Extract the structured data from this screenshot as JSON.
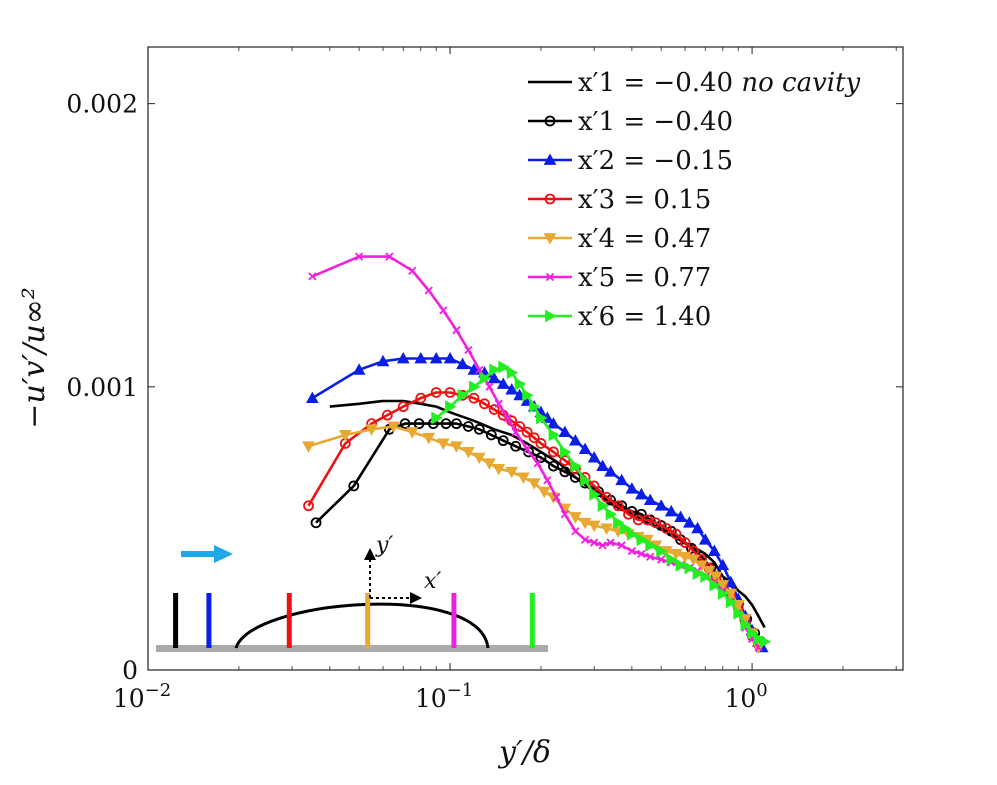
{
  "chart_data": {
    "type": "line",
    "xscale": "log",
    "xlim": [
      0.01,
      3.16
    ],
    "ylim": [
      0,
      0.0022
    ],
    "xlabel": "y′/δ",
    "ylabel": "−u′v′/u∞²",
    "x_ticks": [
      {
        "value": 0.01,
        "label": "10",
        "exp": "−2"
      },
      {
        "value": 0.1,
        "label": "10",
        "exp": "−1"
      },
      {
        "value": 1,
        "label": "10",
        "exp": "0"
      }
    ],
    "y_ticks": [
      {
        "value": 0,
        "label": "0"
      },
      {
        "value": 0.001,
        "label": "0.001"
      },
      {
        "value": 0.002,
        "label": "0.002"
      }
    ],
    "legend_position": "top-right",
    "series": [
      {
        "name": "x′1 = −0.40",
        "name_suffix": "no cavity",
        "color": "#000000",
        "marker": "none",
        "x": [
          0.04,
          0.05,
          0.06,
          0.07,
          0.08,
          0.09,
          0.1,
          0.12,
          0.14,
          0.16,
          0.18,
          0.2,
          0.23,
          0.26,
          0.3,
          0.35,
          0.4,
          0.45,
          0.5,
          0.55,
          0.6,
          0.65,
          0.7,
          0.75,
          0.8,
          0.85,
          0.9,
          0.95,
          1.0,
          1.05,
          1.1
        ],
        "y": [
          0.00093,
          0.00094,
          0.00095,
          0.00095,
          0.00094,
          0.00093,
          0.00091,
          0.00088,
          0.00085,
          0.00083,
          0.0008,
          0.00077,
          0.00073,
          0.00068,
          0.00063,
          0.00058,
          0.00055,
          0.00052,
          0.0005,
          0.00047,
          0.00045,
          0.00043,
          0.00041,
          0.00038,
          0.00033,
          0.00031,
          0.00028,
          0.00026,
          0.00023,
          0.00019,
          0.00015
        ]
      },
      {
        "name": "x′1 = −0.40",
        "color": "#000000",
        "marker": "circle",
        "x": [
          0.036,
          0.048,
          0.063,
          0.071,
          0.079,
          0.088,
          0.097,
          0.105,
          0.115,
          0.125,
          0.137,
          0.15,
          0.165,
          0.182,
          0.2,
          0.22,
          0.24,
          0.26,
          0.28,
          0.31,
          0.34,
          0.37,
          0.4,
          0.43,
          0.46,
          0.5,
          0.54,
          0.58,
          0.63,
          0.68,
          0.73,
          0.78,
          0.84,
          0.9,
          0.96,
          1.02,
          1.07
        ],
        "y": [
          0.00052,
          0.00065,
          0.00085,
          0.00087,
          0.00087,
          0.00087,
          0.00087,
          0.00087,
          0.00086,
          0.00085,
          0.00083,
          0.00081,
          0.00079,
          0.00077,
          0.00075,
          0.00072,
          0.0007,
          0.00068,
          0.00066,
          0.00063,
          0.0006,
          0.00058,
          0.00056,
          0.00055,
          0.00053,
          0.00051,
          0.00049,
          0.00046,
          0.00043,
          0.0004,
          0.00036,
          0.00032,
          0.00028,
          0.00023,
          0.00018,
          0.00013,
          0.0001
        ]
      },
      {
        "name": "x′2 = −0.15",
        "color": "#0a1ee6",
        "marker": "triangle-up",
        "x": [
          0.035,
          0.05,
          0.06,
          0.07,
          0.08,
          0.09,
          0.1,
          0.11,
          0.12,
          0.13,
          0.14,
          0.15,
          0.16,
          0.17,
          0.18,
          0.19,
          0.2,
          0.21,
          0.22,
          0.24,
          0.26,
          0.28,
          0.3,
          0.32,
          0.34,
          0.37,
          0.4,
          0.43,
          0.46,
          0.5,
          0.54,
          0.58,
          0.62,
          0.66,
          0.7,
          0.75,
          0.8,
          0.85,
          0.9,
          0.95,
          1.0,
          1.05,
          1.08
        ],
        "y": [
          0.00096,
          0.00106,
          0.00109,
          0.0011,
          0.0011,
          0.0011,
          0.0011,
          0.00108,
          0.00106,
          0.00105,
          0.00103,
          0.00101,
          0.00099,
          0.00097,
          0.00095,
          0.00093,
          0.00091,
          0.00089,
          0.00087,
          0.00084,
          0.00081,
          0.00078,
          0.00075,
          0.00072,
          0.0007,
          0.00067,
          0.00064,
          0.00062,
          0.0006,
          0.00058,
          0.00056,
          0.00054,
          0.00052,
          0.0005,
          0.00046,
          0.00042,
          0.00037,
          0.00031,
          0.00025,
          0.00019,
          0.00014,
          0.0001,
          8e-05
        ]
      },
      {
        "name": "x′3 = 0.15",
        "color": "#ee1111",
        "marker": "circle",
        "x": [
          0.034,
          0.045,
          0.055,
          0.062,
          0.07,
          0.08,
          0.09,
          0.1,
          0.11,
          0.12,
          0.13,
          0.14,
          0.15,
          0.16,
          0.17,
          0.18,
          0.19,
          0.2,
          0.22,
          0.24,
          0.26,
          0.28,
          0.3,
          0.33,
          0.36,
          0.39,
          0.42,
          0.45,
          0.48,
          0.52,
          0.56,
          0.6,
          0.64,
          0.68,
          0.72,
          0.76,
          0.8,
          0.85,
          0.9,
          0.95,
          1.0,
          1.05
        ],
        "y": [
          0.00058,
          0.0008,
          0.00087,
          0.0009,
          0.00093,
          0.00096,
          0.00098,
          0.00098,
          0.00097,
          0.00096,
          0.00094,
          0.00092,
          0.0009,
          0.00088,
          0.00086,
          0.00084,
          0.00082,
          0.0008,
          0.00077,
          0.00074,
          0.00071,
          0.00068,
          0.00065,
          0.00061,
          0.00058,
          0.00055,
          0.00053,
          0.00053,
          0.00052,
          0.0005,
          0.00048,
          0.00045,
          0.00042,
          0.00039,
          0.00036,
          0.00033,
          0.0003,
          0.00026,
          0.00022,
          0.00017,
          0.00012,
          9e-05
        ]
      },
      {
        "name": "x′4 = 0.47",
        "color": "#e8a832",
        "marker": "triangle-down",
        "x": [
          0.034,
          0.045,
          0.055,
          0.065,
          0.075,
          0.085,
          0.095,
          0.105,
          0.115,
          0.125,
          0.135,
          0.145,
          0.16,
          0.175,
          0.19,
          0.205,
          0.22,
          0.24,
          0.26,
          0.28,
          0.3,
          0.33,
          0.36,
          0.39,
          0.42,
          0.45,
          0.48,
          0.52,
          0.56,
          0.6,
          0.64,
          0.68,
          0.72,
          0.76,
          0.8,
          0.85,
          0.9,
          0.95,
          1.0,
          1.05
        ],
        "y": [
          0.00079,
          0.00083,
          0.00085,
          0.00086,
          0.00084,
          0.00082,
          0.0008,
          0.00079,
          0.00077,
          0.00075,
          0.00073,
          0.00071,
          0.0007,
          0.00068,
          0.00066,
          0.00063,
          0.00061,
          0.00057,
          0.00054,
          0.00052,
          0.00051,
          0.0005,
          0.00049,
          0.00048,
          0.00047,
          0.00046,
          0.00044,
          0.00042,
          0.00041,
          0.0004,
          0.00039,
          0.00037,
          0.00035,
          0.00033,
          0.0003,
          0.00027,
          0.00023,
          0.00018,
          0.00013,
          8e-05
        ]
      },
      {
        "name": "x′5 = 0.77",
        "color": "#f020e0",
        "marker": "x",
        "x": [
          0.035,
          0.05,
          0.063,
          0.075,
          0.085,
          0.095,
          0.105,
          0.115,
          0.125,
          0.135,
          0.145,
          0.155,
          0.165,
          0.18,
          0.195,
          0.21,
          0.225,
          0.24,
          0.26,
          0.28,
          0.3,
          0.32,
          0.34,
          0.37,
          0.4,
          0.43,
          0.46,
          0.5,
          0.54,
          0.58,
          0.62,
          0.66,
          0.7,
          0.75,
          0.8,
          0.85,
          0.9,
          0.95,
          1.0,
          1.05
        ],
        "y": [
          0.00139,
          0.00146,
          0.00146,
          0.00141,
          0.00134,
          0.00127,
          0.0012,
          0.00113,
          0.00106,
          0.001,
          0.00094,
          0.00089,
          0.00084,
          0.00078,
          0.00073,
          0.00067,
          0.00061,
          0.00055,
          0.00049,
          0.00046,
          0.00045,
          0.00044,
          0.00045,
          0.00044,
          0.00042,
          0.00041,
          0.0004,
          0.00039,
          0.00038,
          0.00037,
          0.00036,
          0.00035,
          0.00033,
          0.00031,
          0.00028,
          0.00024,
          0.0002,
          0.00015,
          0.00011,
          8e-05
        ]
      },
      {
        "name": "x′6 = 1.40",
        "color": "#22ee22",
        "marker": "triangle-right",
        "x": [
          0.09,
          0.1,
          0.11,
          0.12,
          0.13,
          0.14,
          0.15,
          0.16,
          0.17,
          0.18,
          0.19,
          0.2,
          0.22,
          0.24,
          0.26,
          0.28,
          0.3,
          0.32,
          0.34,
          0.36,
          0.38,
          0.4,
          0.43,
          0.46,
          0.5,
          0.54,
          0.58,
          0.62,
          0.66,
          0.7,
          0.75,
          0.8,
          0.85,
          0.9,
          0.95,
          1.0,
          1.05,
          1.1
        ],
        "y": [
          0.00089,
          0.00093,
          0.00097,
          0.001,
          0.00103,
          0.00106,
          0.00107,
          0.00105,
          0.00101,
          0.00097,
          0.00093,
          0.00089,
          0.00083,
          0.00077,
          0.00072,
          0.00067,
          0.00062,
          0.00058,
          0.00055,
          0.00052,
          0.0005,
          0.00048,
          0.00046,
          0.00044,
          0.00042,
          0.00039,
          0.00037,
          0.00036,
          0.00034,
          0.00033,
          0.0003,
          0.00027,
          0.00024,
          0.0002,
          0.00016,
          0.00013,
          0.00011,
          0.0001
        ]
      }
    ],
    "inset": {
      "arrow_color": "#1ea8e8",
      "axis_label_x": "x′",
      "axis_label_y": "y′",
      "base_color": "#aaaaaa",
      "stations": [
        {
          "position": 0.05,
          "color": "#000000"
        },
        {
          "position": 0.135,
          "color": "#0a1ee6"
        },
        {
          "position": 0.34,
          "color": "#ee1111"
        },
        {
          "position": 0.54,
          "color": "#e8a832"
        },
        {
          "position": 0.76,
          "color": "#f020e0"
        },
        {
          "position": 0.96,
          "color": "#22ee22"
        }
      ]
    }
  }
}
